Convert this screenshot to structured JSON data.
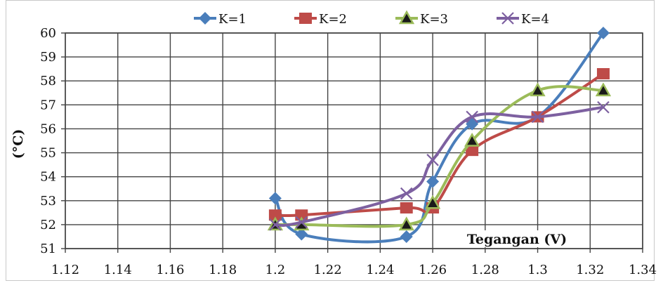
{
  "chart_data": {
    "type": "line",
    "title": "",
    "xlabel": "Tegangan (V)",
    "ylabel": "(°C)",
    "xlim": [
      1.12,
      1.34
    ],
    "ylim": [
      51,
      60
    ],
    "x_ticks": [
      "1.12",
      "1.14",
      "1.16",
      "1.18",
      "1.2",
      "1.22",
      "1.24",
      "1.26",
      "1.28",
      "1.3",
      "1.32",
      "1.34"
    ],
    "y_ticks": [
      "51",
      "52",
      "53",
      "54",
      "55",
      "56",
      "57",
      "58",
      "59",
      "60"
    ],
    "grid": true,
    "legend_position": "top",
    "series": [
      {
        "name": "K=1",
        "color": "#4a7ebb",
        "marker": "diamond",
        "points": [
          [
            1.2,
            53.1
          ],
          [
            1.21,
            51.6
          ],
          [
            1.25,
            51.5
          ],
          [
            1.26,
            53.8
          ],
          [
            1.275,
            56.2
          ],
          [
            1.3,
            56.5
          ],
          [
            1.325,
            60.0
          ]
        ]
      },
      {
        "name": "K=2",
        "color": "#be4b48",
        "marker": "square",
        "points": [
          [
            1.2,
            52.4
          ],
          [
            1.21,
            52.4
          ],
          [
            1.25,
            52.7
          ],
          [
            1.26,
            52.7
          ],
          [
            1.275,
            55.1
          ],
          [
            1.3,
            56.5
          ],
          [
            1.325,
            58.3
          ]
        ]
      },
      {
        "name": "K=3",
        "color": "#9bbb59",
        "marker": "triangle",
        "points": [
          [
            1.2,
            52.0
          ],
          [
            1.21,
            52.0
          ],
          [
            1.25,
            52.0
          ],
          [
            1.26,
            52.9
          ],
          [
            1.275,
            55.5
          ],
          [
            1.3,
            57.6
          ],
          [
            1.325,
            57.6
          ]
        ]
      },
      {
        "name": "K=4",
        "color": "#7d60a0",
        "marker": "x",
        "points": [
          [
            1.2,
            52.0
          ],
          [
            1.21,
            52.1
          ],
          [
            1.25,
            53.3
          ],
          [
            1.26,
            54.7
          ],
          [
            1.275,
            56.5
          ],
          [
            1.3,
            56.5
          ],
          [
            1.325,
            56.9
          ]
        ]
      }
    ]
  }
}
